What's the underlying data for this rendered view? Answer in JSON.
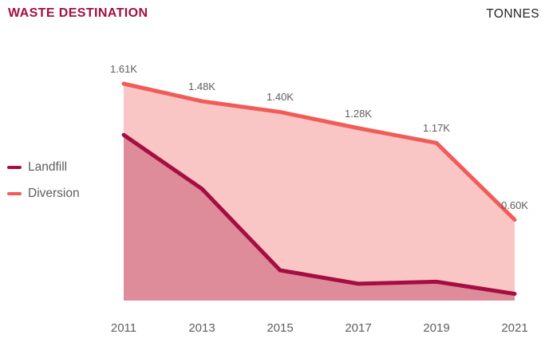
{
  "chart_data": {
    "type": "area",
    "title": "WASTE DESTINATION",
    "unit_label": "TONNES",
    "x": [
      "2011",
      "2013",
      "2015",
      "2017",
      "2019",
      "2021"
    ],
    "series": [
      {
        "name": "Landfill",
        "color": "#A50E42",
        "values_tonnes": [
          1230,
          830,
          225,
          125,
          140,
          50
        ],
        "data_labels": null
      },
      {
        "name": "Diversion",
        "color": "#F15C58",
        "values_tonnes": [
          1610,
          1480,
          1400,
          1280,
          1170,
          600
        ],
        "data_labels": [
          "1.61K",
          "1.48K",
          "1.40K",
          "1.28K",
          "1.17K",
          "0.60K"
        ]
      }
    ],
    "ylim": [
      0,
      1700
    ],
    "xlabel": "",
    "ylabel": "",
    "grid": false,
    "legend_position": "left-middle",
    "text_color": "#605E5C"
  }
}
